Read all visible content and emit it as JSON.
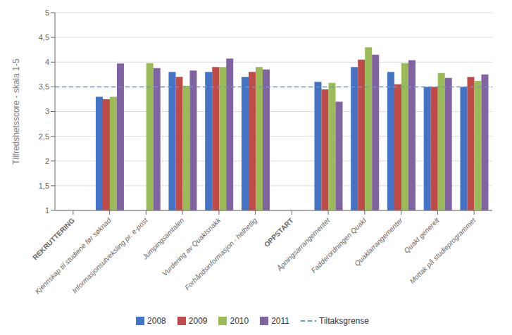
{
  "chart_data": {
    "type": "bar",
    "categories": [
      "REKRUTTERING",
      "Kjennskap til studiene før søknad",
      "Informasjonsutveksling pr. e-post",
      "Jumpingsamtalen",
      "Vurdering av QuakIsnakk",
      "Forhåndsinformasjon - helhetlig",
      "OPPSTART",
      "Åpningsarrangementet",
      "Fadderordningen QuakI",
      "Quaklarrangementer",
      "QuakI generelt",
      "Mottak på studieprogrammet"
    ],
    "series": [
      {
        "name": "2008",
        "color": "#4472C4",
        "values": [
          null,
          3.3,
          null,
          3.8,
          3.8,
          3.7,
          null,
          3.6,
          3.9,
          3.8,
          3.5,
          3.5
        ]
      },
      {
        "name": "2009",
        "color": "#BE4B48",
        "values": [
          null,
          3.25,
          null,
          3.7,
          3.9,
          3.8,
          null,
          3.45,
          4.05,
          3.55,
          3.5,
          3.7
        ]
      },
      {
        "name": "2010",
        "color": "#9BBB59",
        "values": [
          null,
          3.3,
          3.98,
          3.52,
          3.9,
          3.9,
          null,
          3.58,
          4.3,
          3.98,
          3.78,
          3.62
        ]
      },
      {
        "name": "2011",
        "color": "#8064A2",
        "values": [
          null,
          3.97,
          3.88,
          3.83,
          4.07,
          3.85,
          null,
          3.2,
          4.15,
          4.04,
          3.68,
          3.75
        ]
      }
    ],
    "ylabel": "Tilfredshetsscore - skala 1-5",
    "ylim": [
      1,
      5
    ],
    "yticks": [
      1,
      {
        "value": 1.5,
        "label": "1,5"
      },
      2,
      {
        "value": 2.5,
        "label": "2,5"
      },
      3,
      {
        "value": 3.5,
        "label": "3,5"
      },
      4,
      {
        "value": 4.5,
        "label": "4,5"
      },
      5
    ],
    "grid": true,
    "legend": "bottom",
    "reference_lines": [
      {
        "value": 3.5,
        "label": "Tiltaksgrense",
        "color": "#5B9BD5",
        "line_style": "dashed"
      }
    ]
  }
}
